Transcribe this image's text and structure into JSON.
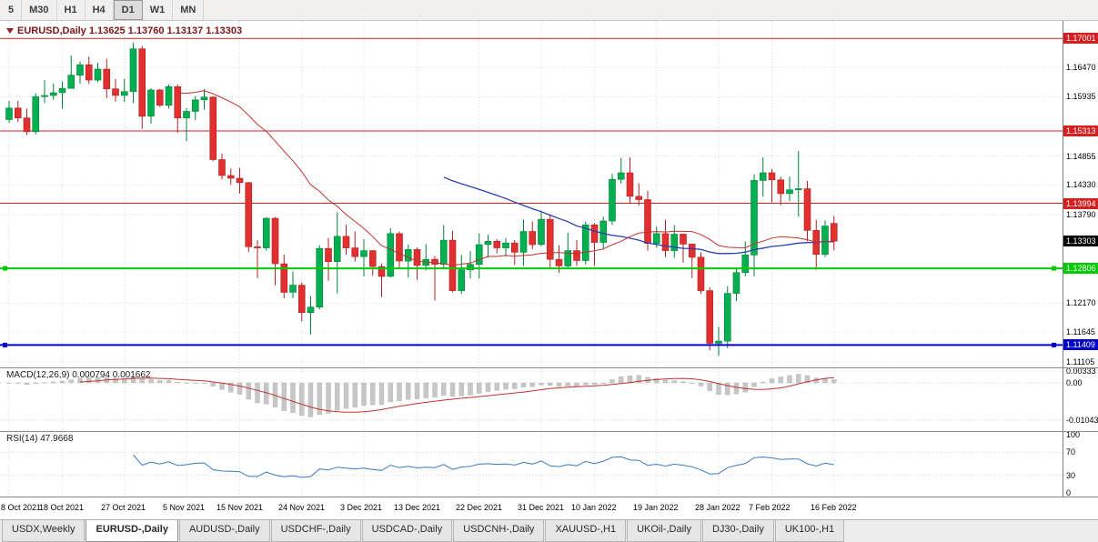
{
  "toolbar": {
    "timeframes": [
      {
        "label": "5",
        "active": false
      },
      {
        "label": "M30",
        "active": false
      },
      {
        "label": "H1",
        "active": false
      },
      {
        "label": "H4",
        "active": false
      },
      {
        "label": "D1",
        "active": true
      },
      {
        "label": "W1",
        "active": false
      },
      {
        "label": "MN",
        "active": false
      }
    ]
  },
  "chart": {
    "title": "EURUSD,Daily 1.13625 1.13760 1.13137 1.13303",
    "symbol": "EURUSD",
    "period": "Daily",
    "open": "1.13625",
    "high": "1.13760",
    "low": "1.13137",
    "close": "1.13303"
  },
  "price_axis": {
    "ticks": [
      {
        "label": "1.16470",
        "value": 1.1647
      },
      {
        "label": "1.15935",
        "value": 1.15935
      },
      {
        "label": "1.14855",
        "value": 1.14855
      },
      {
        "label": "1.14330",
        "value": 1.1433
      },
      {
        "label": "1.13790",
        "value": 1.1379
      },
      {
        "label": "1.12170",
        "value": 1.1217
      },
      {
        "label": "1.11645",
        "value": 1.11645
      },
      {
        "label": "1.11105",
        "value": 1.11105
      }
    ]
  },
  "levels": [
    {
      "label": "1.17001",
      "value": 1.17001,
      "color": "#d42020",
      "line_width": 1,
      "handles": false
    },
    {
      "label": "1.15313",
      "value": 1.15313,
      "color": "#d42020",
      "line_width": 1,
      "handles": false
    },
    {
      "label": "1.13994",
      "value": 1.13994,
      "color": "#d42020",
      "line_width": 1,
      "handles": false
    },
    {
      "label": "1.12806",
      "value": 1.12806,
      "color": "#00cc00",
      "line_width": 2,
      "handles": true
    },
    {
      "label": "1.11409",
      "value": 1.11409,
      "color": "#0000cc",
      "line_width": 2,
      "handles": true
    }
  ],
  "bid_badge": {
    "label": "1.13303",
    "value": 1.13303,
    "color": "#000000"
  },
  "indicators": {
    "macd": {
      "label": "MACD(12,26,9) 0.000794 0.001662",
      "fast": 12,
      "slow": 26,
      "signal": 9,
      "value": "0.000794",
      "signal_value": "0.001662",
      "axis": [
        {
          "label": "0.00333",
          "value": 0.00333
        },
        {
          "label": "0.00",
          "value": 0
        },
        {
          "label": "-0.01043",
          "value": -0.01043
        }
      ]
    },
    "rsi": {
      "label": "RSI(14) 47.9668",
      "period": 14,
      "value": "47.9668",
      "axis": [
        {
          "label": "100",
          "value": 100
        },
        {
          "label": "70",
          "value": 70
        },
        {
          "label": "30",
          "value": 30
        },
        {
          "label": "0",
          "value": 0
        }
      ],
      "guide_levels": [
        70,
        30
      ]
    }
  },
  "tabs": [
    {
      "label": "USDX,Weekly",
      "active": false
    },
    {
      "label": "EURUSD-,Daily",
      "active": true
    },
    {
      "label": "AUDUSD-,Daily",
      "active": false
    },
    {
      "label": "USDCHF-,Daily",
      "active": false
    },
    {
      "label": "USDCAD-,Daily",
      "active": false
    },
    {
      "label": "USDCNH-,Daily",
      "active": false
    },
    {
      "label": "XAUUSD-,H1",
      "active": false
    },
    {
      "label": "UKOil-,Daily",
      "active": false
    },
    {
      "label": "DJ30-,Daily",
      "active": false
    },
    {
      "label": "UK100-,H1",
      "active": false
    }
  ],
  "colors": {
    "up": "#00b050",
    "up_stroke": "#00803a",
    "down": "#e03030",
    "down_stroke": "#b02020",
    "ma_fast": "#c03232",
    "ma_slow": "#2a3fb0",
    "macd_hist": "#c6c6c6",
    "macd_signal": "#c03232",
    "rsi_line": "#3a7bbf",
    "grid": "#dadada",
    "level_red": "#d42020",
    "level_green": "#00cc00",
    "level_blue": "#0000cc",
    "title_text": "#7d1416"
  },
  "chart_data": {
    "type": "candlestick",
    "title": "EURUSD,Daily",
    "ohlc_format": [
      "open",
      "high",
      "low",
      "close"
    ],
    "price_range": [
      1.1105,
      1.1722
    ],
    "ma_fast_period": 20,
    "ma_slow_period": 50,
    "date_labels": [
      "8 Oct 2021",
      "18 Oct 2021",
      "27 Oct 2021",
      "5 Nov 2021",
      "15 Nov 2021",
      "24 Nov 2021",
      "3 Dec 2021",
      "13 Dec 2021",
      "22 Dec 2021",
      "31 Dec 2021",
      "10 Jan 2022",
      "19 Jan 2022",
      "28 Jan 2022",
      "7 Feb 2022",
      "16 Feb 2022"
    ],
    "date_label_indices": [
      0,
      6,
      13,
      20,
      26,
      33,
      40,
      46,
      53,
      60,
      66,
      73,
      80,
      86,
      93
    ],
    "candles": [
      [
        1.1552,
        1.1586,
        1.1546,
        1.1573
      ],
      [
        1.1573,
        1.1586,
        1.1548,
        1.1555
      ],
      [
        1.1555,
        1.1572,
        1.1524,
        1.153
      ],
      [
        1.153,
        1.16,
        1.1525,
        1.1594
      ],
      [
        1.1594,
        1.1624,
        1.1582,
        1.1596
      ],
      [
        1.1596,
        1.1618,
        1.1588,
        1.1601
      ],
      [
        1.1601,
        1.1621,
        1.1572,
        1.1609
      ],
      [
        1.1609,
        1.1669,
        1.1609,
        1.1633
      ],
      [
        1.1633,
        1.1658,
        1.1617,
        1.1652
      ],
      [
        1.1652,
        1.1667,
        1.1617,
        1.1624
      ],
      [
        1.1624,
        1.1656,
        1.162,
        1.1644
      ],
      [
        1.1644,
        1.1663,
        1.1591,
        1.1608
      ],
      [
        1.1608,
        1.1626,
        1.1585,
        1.1596
      ],
      [
        1.1596,
        1.1626,
        1.1584,
        1.1603
      ],
      [
        1.1603,
        1.1692,
        1.1582,
        1.1681
      ],
      [
        1.1681,
        1.1686,
        1.1535,
        1.1558
      ],
      [
        1.1558,
        1.1609,
        1.1545,
        1.1606
      ],
      [
        1.1606,
        1.1608,
        1.1575,
        1.1578
      ],
      [
        1.1578,
        1.1616,
        1.1572,
        1.1612
      ],
      [
        1.1612,
        1.1616,
        1.1528,
        1.1555
      ],
      [
        1.1555,
        1.1573,
        1.1513,
        1.1567
      ],
      [
        1.1567,
        1.1595,
        1.1551,
        1.1588
      ],
      [
        1.1588,
        1.1608,
        1.157,
        1.1593
      ],
      [
        1.1593,
        1.1595,
        1.1476,
        1.1479
      ],
      [
        1.1479,
        1.149,
        1.1443,
        1.145
      ],
      [
        1.145,
        1.1463,
        1.1433,
        1.1445
      ],
      [
        1.1445,
        1.1464,
        1.1417,
        1.1437
      ],
      [
        1.1437,
        1.1438,
        1.131,
        1.132
      ],
      [
        1.132,
        1.1332,
        1.1263,
        1.1318
      ],
      [
        1.1318,
        1.1374,
        1.1313,
        1.1372
      ],
      [
        1.1372,
        1.1374,
        1.125,
        1.1289
      ],
      [
        1.1289,
        1.1306,
        1.1226,
        1.1237
      ],
      [
        1.1237,
        1.1275,
        1.1226,
        1.125
      ],
      [
        1.125,
        1.1255,
        1.1184,
        1.12
      ],
      [
        1.12,
        1.123,
        1.116,
        1.121
      ],
      [
        1.121,
        1.1323,
        1.1206,
        1.1317
      ],
      [
        1.1317,
        1.1336,
        1.1258,
        1.1293
      ],
      [
        1.1293,
        1.1383,
        1.1235,
        1.1339
      ],
      [
        1.1339,
        1.136,
        1.1305,
        1.1318
      ],
      [
        1.1318,
        1.1348,
        1.1293,
        1.1302
      ],
      [
        1.1302,
        1.1334,
        1.1266,
        1.1313
      ],
      [
        1.1313,
        1.1314,
        1.1267,
        1.1284
      ],
      [
        1.1284,
        1.1289,
        1.1228,
        1.1266
      ],
      [
        1.1266,
        1.1354,
        1.1264,
        1.1344
      ],
      [
        1.1344,
        1.1348,
        1.128,
        1.1294
      ],
      [
        1.1294,
        1.1324,
        1.1264,
        1.1315
      ],
      [
        1.1315,
        1.1319,
        1.126,
        1.1286
      ],
      [
        1.1286,
        1.1325,
        1.1277,
        1.1297
      ],
      [
        1.1297,
        1.1303,
        1.1222,
        1.1288
      ],
      [
        1.1288,
        1.136,
        1.128,
        1.1332
      ],
      [
        1.1332,
        1.1349,
        1.1237,
        1.124
      ],
      [
        1.124,
        1.1305,
        1.1234,
        1.1278
      ],
      [
        1.1278,
        1.1312,
        1.1262,
        1.1288
      ],
      [
        1.1288,
        1.1344,
        1.1262,
        1.1324
      ],
      [
        1.1324,
        1.1342,
        1.13,
        1.133
      ],
      [
        1.133,
        1.1334,
        1.1308,
        1.1318
      ],
      [
        1.1318,
        1.1336,
        1.1302,
        1.1327
      ],
      [
        1.1327,
        1.1332,
        1.1287,
        1.131
      ],
      [
        1.131,
        1.137,
        1.1285,
        1.1348
      ],
      [
        1.1348,
        1.1366,
        1.1316,
        1.1324
      ],
      [
        1.1324,
        1.1386,
        1.1321,
        1.137
      ],
      [
        1.137,
        1.1379,
        1.1279,
        1.1297
      ],
      [
        1.1297,
        1.1323,
        1.1272,
        1.1285
      ],
      [
        1.1285,
        1.1346,
        1.128,
        1.1313
      ],
      [
        1.1313,
        1.1332,
        1.1285,
        1.1295
      ],
      [
        1.1295,
        1.1366,
        1.1288,
        1.136
      ],
      [
        1.136,
        1.1363,
        1.1285,
        1.1328
      ],
      [
        1.1328,
        1.1375,
        1.1315,
        1.1367
      ],
      [
        1.1367,
        1.1453,
        1.136,
        1.1443
      ],
      [
        1.1443,
        1.1482,
        1.1435,
        1.1455
      ],
      [
        1.1455,
        1.1483,
        1.1398,
        1.1412
      ],
      [
        1.1412,
        1.1436,
        1.1395,
        1.1406
      ],
      [
        1.1406,
        1.1422,
        1.1313,
        1.1326
      ],
      [
        1.1326,
        1.1357,
        1.1318,
        1.1344
      ],
      [
        1.1344,
        1.1369,
        1.1301,
        1.1313
      ],
      [
        1.1313,
        1.136,
        1.13,
        1.1343
      ],
      [
        1.1343,
        1.1344,
        1.1291,
        1.1325
      ],
      [
        1.1325,
        1.1325,
        1.1263,
        1.1301
      ],
      [
        1.1301,
        1.131,
        1.1234,
        1.124
      ],
      [
        1.124,
        1.1246,
        1.1131,
        1.1144
      ],
      [
        1.1144,
        1.1174,
        1.1121,
        1.1148
      ],
      [
        1.1148,
        1.1248,
        1.1135,
        1.1235
      ],
      [
        1.1235,
        1.1279,
        1.1221,
        1.1273
      ],
      [
        1.1273,
        1.133,
        1.1266,
        1.1305
      ],
      [
        1.1305,
        1.1452,
        1.1266,
        1.1441
      ],
      [
        1.1441,
        1.1483,
        1.1411,
        1.1455
      ],
      [
        1.1455,
        1.1462,
        1.1401,
        1.1442
      ],
      [
        1.1442,
        1.1448,
        1.1396,
        1.1417
      ],
      [
        1.1417,
        1.1448,
        1.1403,
        1.1424
      ],
      [
        1.1424,
        1.1495,
        1.1375,
        1.1426
      ],
      [
        1.1426,
        1.144,
        1.133,
        1.135
      ],
      [
        1.135,
        1.1369,
        1.1278,
        1.1306
      ],
      [
        1.1306,
        1.1368,
        1.1301,
        1.1358
      ],
      [
        1.13625,
        1.1376,
        1.13137,
        1.13303
      ]
    ]
  }
}
